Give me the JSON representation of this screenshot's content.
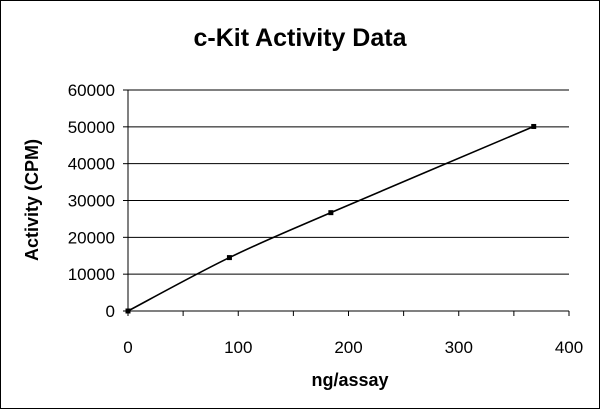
{
  "chart_data": {
    "type": "line",
    "title": "c-Kit Activity Data",
    "xlabel": "ng/assay",
    "ylabel": "Activity (CPM)",
    "xlim": [
      0,
      400
    ],
    "ylim": [
      0,
      60000
    ],
    "x_ticks": [
      0,
      100,
      200,
      300,
      400
    ],
    "y_ticks": [
      0,
      10000,
      20000,
      30000,
      40000,
      50000,
      60000
    ],
    "x_tick_labels": [
      "0",
      "100",
      "200",
      "300",
      "400"
    ],
    "y_tick_labels": [
      "0",
      "10000",
      "20000",
      "30000",
      "40000",
      "50000",
      "60000"
    ],
    "grid": "horizontal",
    "legend": "none",
    "series": [
      {
        "x": [
          0,
          92,
          184,
          368
        ],
        "y": [
          0,
          14500,
          26700,
          50100
        ]
      }
    ],
    "colors": {
      "line": "#000000",
      "grid": "#000000",
      "background": "#ffffff"
    }
  }
}
